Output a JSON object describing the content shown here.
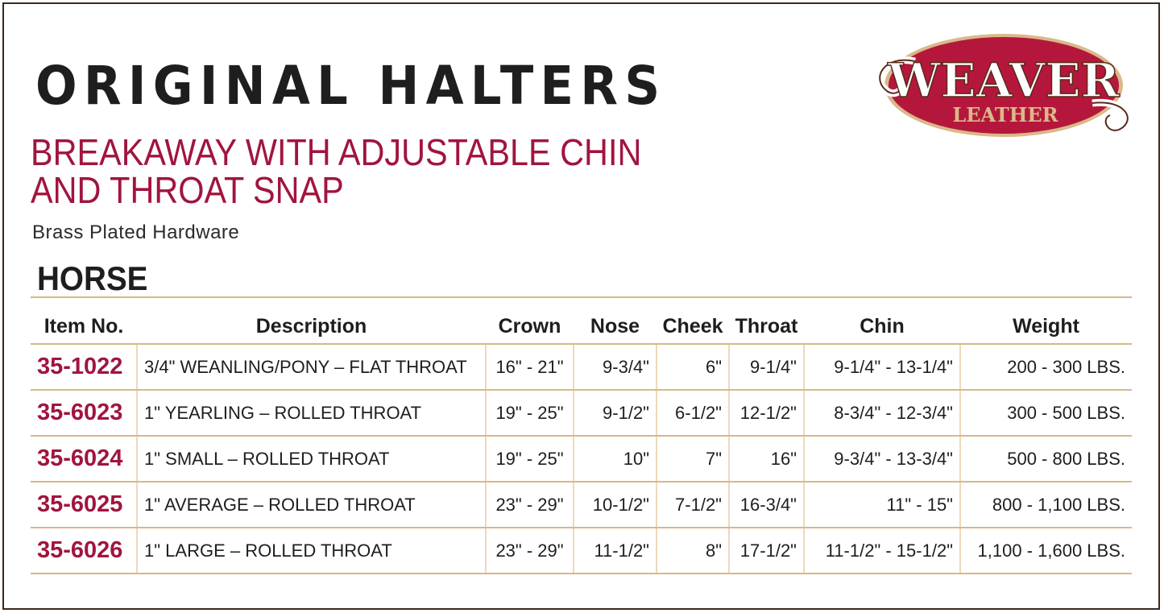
{
  "title": "ORIGINAL HALTERS",
  "subtitle_line1": "BREAKAWAY WITH ADJUSTABLE CHIN",
  "subtitle_line2": "AND THROAT SNAP",
  "hardware": "Brass Plated Hardware",
  "section": "HORSE",
  "logo": {
    "brand": "WEAVER",
    "tagline": "LEATHER",
    "colors": {
      "red": "#b5173c",
      "tan": "#d9b98a"
    }
  },
  "colors": {
    "accent": "#a0153e",
    "rule": "#d8b887"
  },
  "table": {
    "headers": [
      "Item No.",
      "Description",
      "Crown",
      "Nose",
      "Cheek",
      "Throat",
      "Chin",
      "Weight"
    ],
    "rows": [
      [
        "35-1022",
        "3/4\" WEANLING/PONY – FLAT THROAT",
        "16\" - 21\"",
        "9-3/4\"",
        "6\"",
        "9-1/4\"",
        "9-1/4\" - 13-1/4\"",
        "200 - 300 LBS."
      ],
      [
        "35-6023",
        "1\" YEARLING – ROLLED THROAT",
        "19\" - 25\"",
        "9-1/2\"",
        "6-1/2\"",
        "12-1/2\"",
        "8-3/4\" - 12-3/4\"",
        "300 - 500 LBS."
      ],
      [
        "35-6024",
        "1\" SMALL – ROLLED THROAT",
        "19\" - 25\"",
        "10\"",
        "7\"",
        "16\"",
        "9-3/4\" - 13-3/4\"",
        "500 - 800 LBS."
      ],
      [
        "35-6025",
        "1\" AVERAGE – ROLLED THROAT",
        "23\" - 29\"",
        "10-1/2\"",
        "7-1/2\"",
        "16-3/4\"",
        "11\" - 15\"",
        "800 - 1,100 LBS."
      ],
      [
        "35-6026",
        "1\" LARGE – ROLLED THROAT",
        "23\" - 29\"",
        "11-1/2\"",
        "8\"",
        "17-1/2\"",
        "11-1/2\" - 15-1/2\"",
        "1,100 - 1,600 LBS."
      ]
    ]
  }
}
